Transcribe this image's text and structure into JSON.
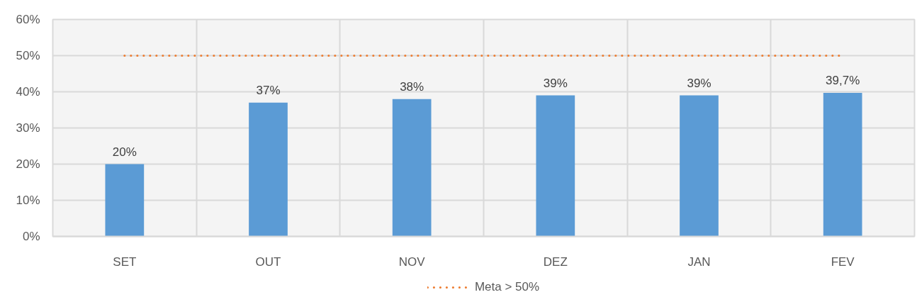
{
  "chart_data": {
    "type": "bar",
    "categories": [
      "SET",
      "OUT",
      "NOV",
      "DEZ",
      "JAN",
      "FEV"
    ],
    "series": [
      {
        "color": "#5b9bd5",
        "values": [
          20,
          37,
          38,
          39,
          39,
          39.7
        ],
        "value_labels": [
          "20%",
          "37%",
          "38%",
          "39%",
          "39%",
          "39,7%"
        ]
      },
      {
        "type": "line",
        "name": "Meta > 50%",
        "color": "#ed7d31",
        "values": [
          50,
          50,
          50,
          50,
          50,
          50
        ],
        "line_style": "dotted",
        "marker": "none"
      }
    ],
    "ylim": [
      0,
      60
    ],
    "yticks": [
      {
        "value": 0,
        "label": "0%"
      },
      {
        "value": 10,
        "label": "10%"
      },
      {
        "value": 20,
        "label": "20%"
      },
      {
        "value": 30,
        "label": "30%"
      },
      {
        "value": 40,
        "label": "40%"
      },
      {
        "value": 50,
        "label": "50%"
      },
      {
        "value": 60,
        "label": "60%"
      }
    ],
    "grid": true,
    "legend": "bottom"
  }
}
